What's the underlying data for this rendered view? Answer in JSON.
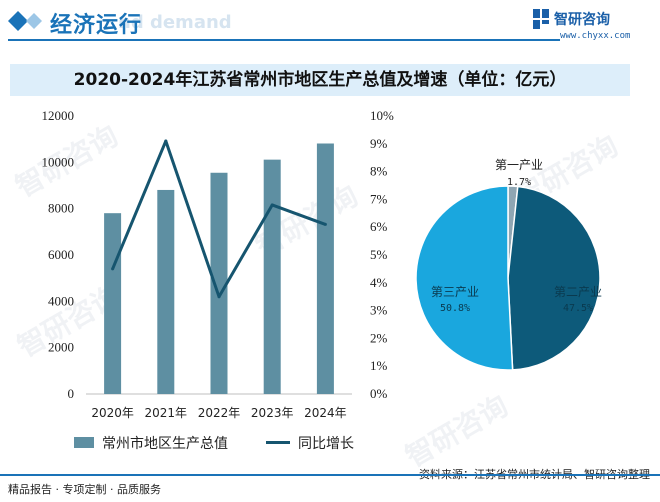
{
  "header": {
    "title": "经济运行",
    "ghost_text": "nd demand"
  },
  "brand": {
    "name": "智研咨询",
    "url": "www.chyxx.com"
  },
  "colors": {
    "bar": "#5e8fa2",
    "line": "#16556f",
    "pie_primary": "#8fa6b3",
    "pie_secondary": "#0d5a7a",
    "pie_tertiary": "#1aa7de",
    "accent": "#1a73b8"
  },
  "watermark": {
    "text": "智研咨询"
  },
  "chart_data": {
    "type": "bar",
    "title": "2020-2024年江苏省常州市地区生产总值及增速（单位：亿元）",
    "categories": [
      "2020年",
      "2021年",
      "2022年",
      "2023年",
      "2024年"
    ],
    "series": [
      {
        "name": "常州市地区生产总值",
        "type": "bar",
        "axis": "left",
        "values": [
          7805,
          8808,
          9550,
          10116,
          10813
        ]
      },
      {
        "name": "同比增长",
        "type": "line",
        "axis": "right",
        "values": [
          4.5,
          9.1,
          3.5,
          6.8,
          6.1
        ]
      }
    ],
    "y_left": {
      "min": 0,
      "max": 12000,
      "ticks": [
        0,
        2000,
        4000,
        6000,
        8000,
        10000,
        12000
      ]
    },
    "y_right": {
      "min": 0,
      "max": 10,
      "unit": "%",
      "ticks": [
        0,
        1,
        2,
        3,
        4,
        5,
        6,
        7,
        8,
        9,
        10
      ]
    },
    "pie": {
      "type": "pie",
      "slices": [
        {
          "label": "第一产业",
          "value": 1.7,
          "value_text": "1.7%"
        },
        {
          "label": "第二产业",
          "value": 47.5,
          "value_text": "47.5%"
        },
        {
          "label": "第三产业",
          "value": 50.8,
          "value_text": "50.8%"
        }
      ]
    }
  },
  "legend": {
    "bar_label": "常州市地区生产总值",
    "line_label": "同比增长"
  },
  "footer": {
    "source": "资料来源：江苏省常州市统计局、智研咨询整理",
    "slogan": "精品报告 · 专项定制 · 品质服务"
  }
}
